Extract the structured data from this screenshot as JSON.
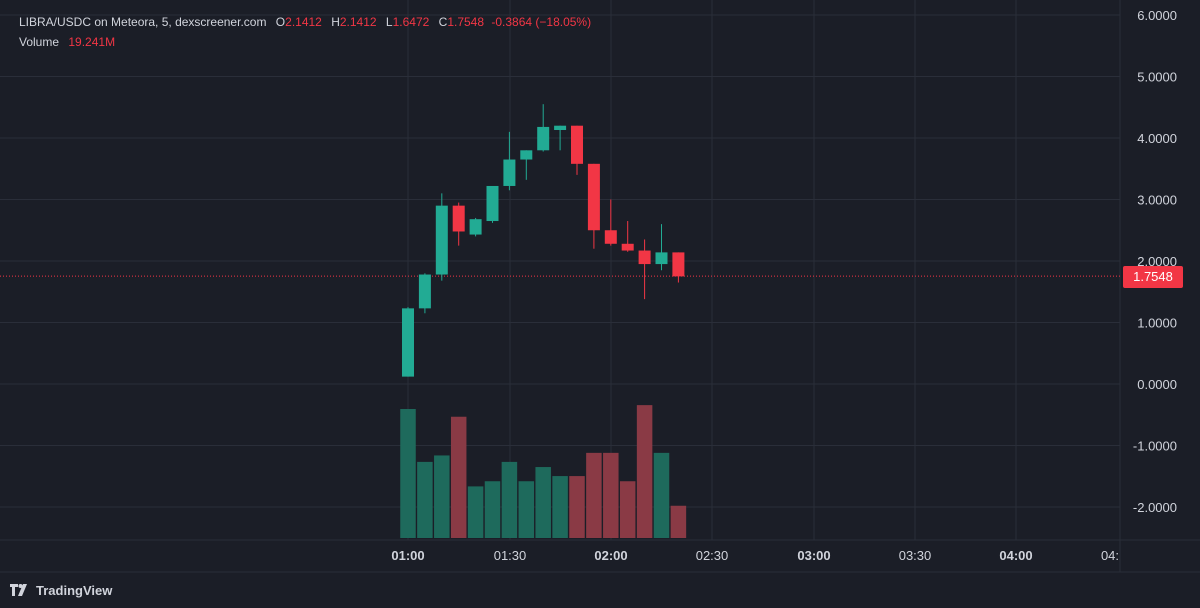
{
  "header": {
    "symbol": "LIBRA/USDC on Meteora, 5, dexscreener.com",
    "open_key": "O",
    "open": "2.1412",
    "high_key": "H",
    "high": "2.1412",
    "low_key": "L",
    "low": "1.6472",
    "close_key": "C",
    "close": "1.7548",
    "change": "-0.3864 (−18.05%)",
    "volume_label": "Volume",
    "volume_value": "19.241M"
  },
  "current_price_tag": "1.7548",
  "footer": {
    "brand": "TradingView",
    "logo_icon": "tradingview-logo-icon"
  },
  "colors": {
    "up": "#22ab94",
    "down": "#f23645",
    "vol_up": "#1e6a5c",
    "vol_down": "#8a3a45",
    "background": "#1b1e27",
    "grid": "#2a2e39",
    "price_line": "#f23645"
  },
  "chart_data": {
    "type": "candlestick",
    "interval": "5",
    "y_ticks": [
      "6.0000",
      "5.0000",
      "4.0000",
      "3.0000",
      "2.0000",
      "1.0000",
      "0.0000",
      "-1.0000",
      "-2.0000"
    ],
    "y_range": [
      -2.5,
      6.0
    ],
    "x_ticks": [
      {
        "label": "01:00",
        "bold": true
      },
      {
        "label": "01:30",
        "bold": false
      },
      {
        "label": "02:00",
        "bold": true
      },
      {
        "label": "02:30",
        "bold": false
      },
      {
        "label": "03:00",
        "bold": true
      },
      {
        "label": "03:30",
        "bold": false
      },
      {
        "label": "04:00",
        "bold": true
      },
      {
        "label": "04:",
        "bold": false
      }
    ],
    "last_price": 1.7548,
    "grid": true,
    "candles": [
      {
        "time": "01:00",
        "open": 0.12,
        "high": 1.25,
        "low": 0.12,
        "close": 1.23
      },
      {
        "time": "01:05",
        "open": 1.23,
        "high": 1.8,
        "low": 1.15,
        "close": 1.78
      },
      {
        "time": "01:10",
        "open": 1.78,
        "high": 3.1,
        "low": 1.68,
        "close": 2.9
      },
      {
        "time": "01:15",
        "open": 2.9,
        "high": 2.95,
        "low": 2.25,
        "close": 2.48
      },
      {
        "time": "01:20",
        "open": 2.43,
        "high": 2.7,
        "low": 2.4,
        "close": 2.68
      },
      {
        "time": "01:25",
        "open": 2.65,
        "high": 3.2,
        "low": 2.62,
        "close": 3.22
      },
      {
        "time": "01:30",
        "open": 3.22,
        "high": 4.1,
        "low": 3.15,
        "close": 3.65
      },
      {
        "time": "01:35",
        "open": 3.65,
        "high": 3.8,
        "low": 3.32,
        "close": 3.8
      },
      {
        "time": "01:40",
        "open": 3.8,
        "high": 4.55,
        "low": 3.78,
        "close": 4.18
      },
      {
        "time": "01:45",
        "open": 4.13,
        "high": 4.2,
        "low": 3.8,
        "close": 4.2
      },
      {
        "time": "01:50",
        "open": 4.2,
        "high": 4.2,
        "low": 3.4,
        "close": 3.58
      },
      {
        "time": "01:55",
        "open": 3.58,
        "high": 3.58,
        "low": 2.2,
        "close": 2.5
      },
      {
        "time": "02:00",
        "open": 2.5,
        "high": 3.0,
        "low": 2.25,
        "close": 2.28
      },
      {
        "time": "02:05",
        "open": 2.28,
        "high": 2.65,
        "low": 2.15,
        "close": 2.17
      },
      {
        "time": "02:10",
        "open": 2.17,
        "high": 2.35,
        "low": 1.38,
        "close": 1.95
      },
      {
        "time": "02:15",
        "open": 1.95,
        "high": 2.6,
        "low": 1.85,
        "close": 2.14
      },
      {
        "time": "02:20",
        "open": 2.14,
        "high": 2.14,
        "low": 1.65,
        "close": 1.75
      }
    ],
    "volume": [
      {
        "value": 1.0,
        "up": true
      },
      {
        "value": 0.59,
        "up": true
      },
      {
        "value": 0.64,
        "up": true
      },
      {
        "value": 0.94,
        "up": false
      },
      {
        "value": 0.4,
        "up": true
      },
      {
        "value": 0.44,
        "up": true
      },
      {
        "value": 0.59,
        "up": true
      },
      {
        "value": 0.44,
        "up": true
      },
      {
        "value": 0.55,
        "up": true
      },
      {
        "value": 0.48,
        "up": true
      },
      {
        "value": 0.48,
        "up": false
      },
      {
        "value": 0.66,
        "up": false
      },
      {
        "value": 0.66,
        "up": false
      },
      {
        "value": 0.44,
        "up": false
      },
      {
        "value": 1.03,
        "up": false
      },
      {
        "value": 0.66,
        "up": true
      },
      {
        "value": 0.25,
        "up": false
      }
    ]
  }
}
